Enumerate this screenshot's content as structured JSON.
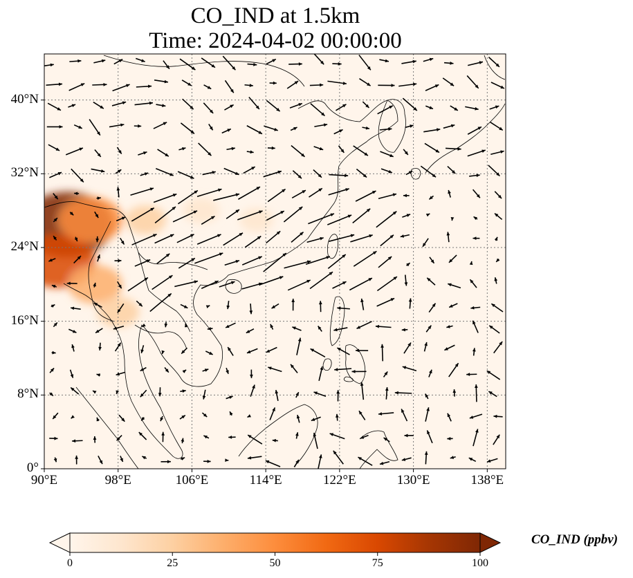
{
  "title": {
    "line1": "CO_IND at 1.5km",
    "line2": "Time: 2024-04-02 00:00:00"
  },
  "map": {
    "lon_range": [
      90,
      140
    ],
    "lat_range": [
      0,
      45
    ],
    "lon_ticks": [
      {
        "value": 90,
        "label": "90°E"
      },
      {
        "value": 98,
        "label": "98°E"
      },
      {
        "value": 106,
        "label": "106°E"
      },
      {
        "value": 114,
        "label": "114°E"
      },
      {
        "value": 122,
        "label": "122°E"
      },
      {
        "value": 130,
        "label": "130°E"
      },
      {
        "value": 138,
        "label": "138°E"
      }
    ],
    "lat_ticks": [
      {
        "value": 0,
        "label": "0°"
      },
      {
        "value": 8,
        "label": "8°N"
      },
      {
        "value": 16,
        "label": "16°N"
      },
      {
        "value": 24,
        "label": "24°N"
      },
      {
        "value": 32,
        "label": "32°N"
      },
      {
        "value": 40,
        "label": "40°N"
      }
    ],
    "gridlines": true,
    "background_color": "#fff5eb",
    "hotspots": [
      {
        "lon": 92.5,
        "lat": 26.5,
        "value": 95
      },
      {
        "lon": 91.5,
        "lat": 22.5,
        "value": 70
      },
      {
        "lon": 95,
        "lat": 27,
        "value": 55
      },
      {
        "lon": 95.5,
        "lat": 20,
        "value": 40
      },
      {
        "lon": 98,
        "lat": 17,
        "value": 22
      },
      {
        "lon": 101,
        "lat": 27,
        "value": 20
      },
      {
        "lon": 107,
        "lat": 28,
        "value": 14
      },
      {
        "lon": 113,
        "lat": 27,
        "value": 10
      }
    ]
  },
  "colorbar": {
    "title": "CO_IND (ppbv)",
    "min": 0,
    "max": 100,
    "colormap": "OrRd",
    "extend": "both",
    "stops": [
      "#fff5eb",
      "#fee6ce",
      "#fdd0a2",
      "#fdae6b",
      "#fd8d3c",
      "#f16913",
      "#d94801",
      "#a63603",
      "#7f2704"
    ],
    "ticks": [
      {
        "value": 0,
        "label": "0"
      },
      {
        "value": 25,
        "label": "25"
      },
      {
        "value": 50,
        "label": "50"
      },
      {
        "value": 75,
        "label": "75"
      },
      {
        "value": 100,
        "label": "100"
      }
    ]
  }
}
